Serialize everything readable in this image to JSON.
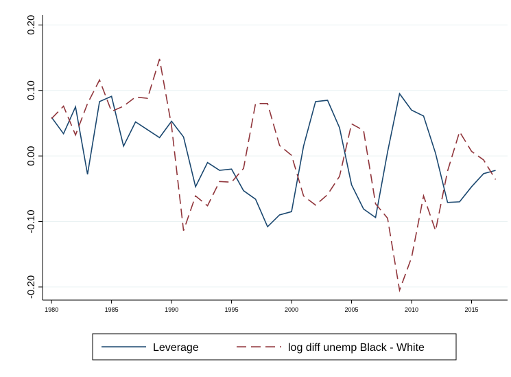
{
  "chart_data": {
    "type": "line",
    "x": [
      1980,
      1981,
      1982,
      1983,
      1984,
      1985,
      1986,
      1987,
      1988,
      1989,
      1990,
      1991,
      1992,
      1993,
      1994,
      1995,
      1996,
      1997,
      1998,
      1999,
      2000,
      2001,
      2002,
      2003,
      2004,
      2005,
      2006,
      2007,
      2008,
      2009,
      2010,
      2011,
      2012,
      2013,
      2014,
      2015,
      2016,
      2017
    ],
    "series": [
      {
        "name": "Leverage",
        "color": "#1a476f",
        "dash": false,
        "values": [
          0.059,
          0.034,
          0.075,
          -0.028,
          0.083,
          0.091,
          0.015,
          0.052,
          0.04,
          0.028,
          0.053,
          0.029,
          -0.047,
          -0.01,
          -0.022,
          -0.02,
          -0.053,
          -0.066,
          -0.108,
          -0.09,
          -0.085,
          0.015,
          0.083,
          0.085,
          0.043,
          -0.044,
          -0.081,
          -0.094,
          0.006,
          0.095,
          0.07,
          0.061,
          0.004,
          -0.071,
          -0.07,
          -0.047,
          -0.027,
          -0.022
        ]
      },
      {
        "name": "log diff unemp Black - White",
        "color": "#90353b",
        "dash": true,
        "values": [
          0.057,
          0.076,
          0.032,
          0.08,
          0.116,
          0.068,
          0.076,
          0.09,
          0.088,
          0.148,
          0.046,
          -0.114,
          -0.061,
          -0.076,
          -0.039,
          -0.04,
          -0.019,
          0.08,
          0.08,
          0.016,
          0.001,
          -0.061,
          -0.075,
          -0.059,
          -0.031,
          0.049,
          0.039,
          -0.073,
          -0.095,
          -0.205,
          -0.155,
          -0.061,
          -0.114,
          -0.023,
          0.037,
          0.007,
          -0.006,
          -0.036
        ]
      }
    ],
    "xlim": [
      1979.25,
      2018
    ],
    "xticks": [
      1980,
      1985,
      1990,
      1995,
      2000,
      2005,
      2010,
      2015
    ],
    "ylim": [
      -0.22,
      0.215
    ],
    "yticks": [
      {
        "value": -0.2,
        "label": "-0.20"
      },
      {
        "value": -0.1,
        "label": "-0.10"
      },
      {
        "value": 0,
        "label": "0.00"
      },
      {
        "value": 0.1,
        "label": "0.10"
      },
      {
        "value": 0.2,
        "label": "0.20"
      }
    ],
    "grid": true,
    "legend": "bottom"
  }
}
